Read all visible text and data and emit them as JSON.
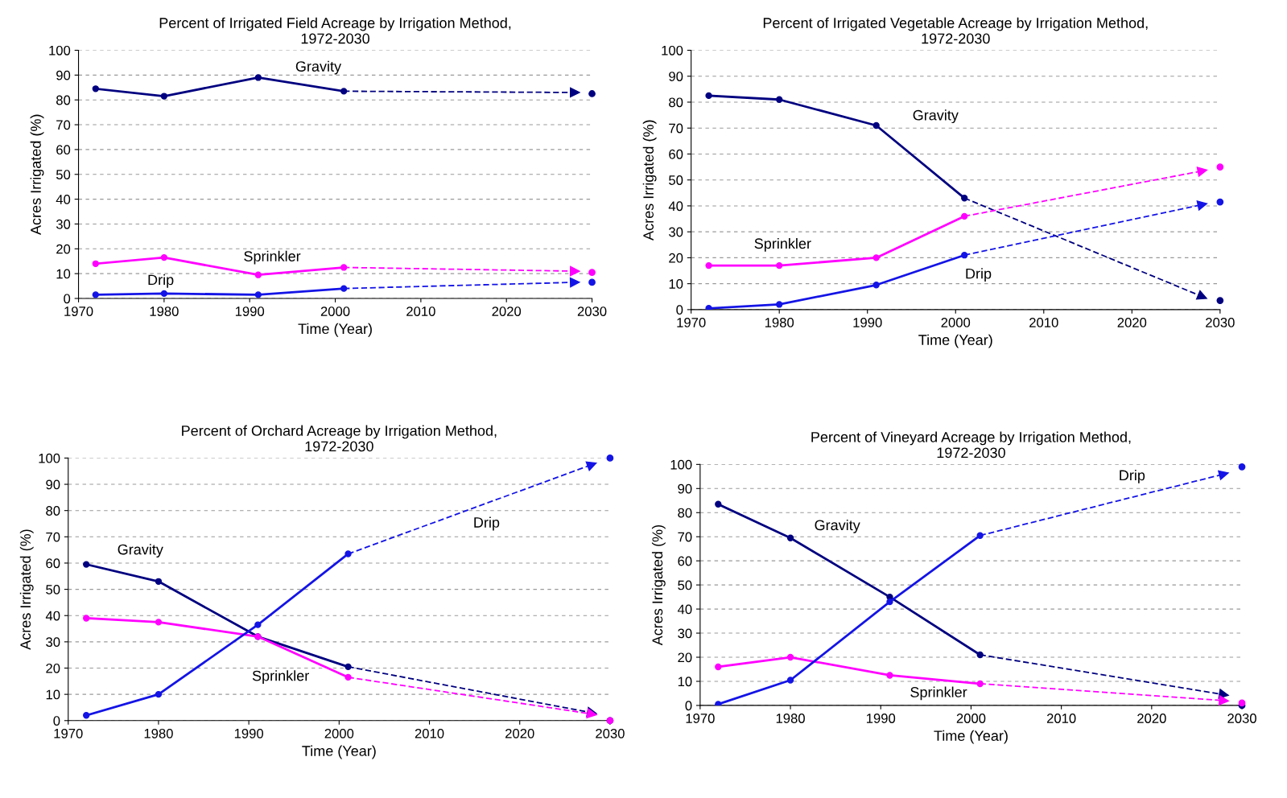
{
  "chart_data": [
    {
      "type": "line",
      "title": "Percent of Irrigated Field Acreage by Irrigation Method,\n1972-2030",
      "xlabel": "Time (Year)",
      "ylabel": "Acres Irrigated (%)",
      "xlim": [
        1970,
        2030
      ],
      "xticks": [
        1970,
        1980,
        1990,
        2000,
        2010,
        2020,
        2030
      ],
      "ylim": [
        0,
        100
      ],
      "yticks": [
        0,
        10,
        20,
        30,
        40,
        50,
        60,
        70,
        80,
        90,
        100
      ],
      "grid": "y",
      "legend": false,
      "series": [
        {
          "name": "Gravity",
          "color": "#000080",
          "x": [
            1972,
            1980,
            1991,
            2001
          ],
          "values": [
            84.5,
            81.5,
            89,
            83.5
          ],
          "marker": "circle",
          "line_style": "solid"
        },
        {
          "color": "#000080",
          "x": [
            2001,
            2028
          ],
          "values": [
            83.5,
            83
          ],
          "marker": "triangle",
          "line_style": "dashed"
        },
        {
          "type": "scatter",
          "color": "#000080",
          "x": [
            2030
          ],
          "values": [
            82.5
          ],
          "marker": "circle"
        },
        {
          "name": "Sprinkler",
          "color": "#ff00ff",
          "x": [
            1972,
            1980,
            1991,
            2001
          ],
          "values": [
            14,
            16.5,
            9.5,
            12.5
          ],
          "marker": "circle",
          "line_style": "solid"
        },
        {
          "color": "#ff00ff",
          "x": [
            2001,
            2028
          ],
          "values": [
            12.5,
            11
          ],
          "marker": "triangle",
          "line_style": "dashed"
        },
        {
          "type": "scatter",
          "color": "#ff00ff",
          "x": [
            2030
          ],
          "values": [
            10.5
          ],
          "marker": "circle"
        },
        {
          "name": "Drip",
          "color": "#1414e6",
          "x": [
            1972,
            1980,
            1991,
            2001
          ],
          "values": [
            1.5,
            2,
            1.5,
            4
          ],
          "marker": "circle",
          "line_style": "solid"
        },
        {
          "color": "#1414e6",
          "x": [
            2001,
            2028
          ],
          "values": [
            4,
            6.5
          ],
          "marker": "triangle",
          "line_style": "dashed"
        },
        {
          "type": "scatter",
          "color": "#1414e6",
          "x": [
            2030
          ],
          "values": [
            6.5
          ],
          "marker": "circle"
        }
      ]
    },
    {
      "type": "line",
      "title": "Percent of Irrigated Vegetable Acreage by Irrigation Method,\n1972-2030",
      "xlabel": "Time (Year)",
      "ylabel": "Acres Irrigated (%)",
      "xlim": [
        1970,
        2030
      ],
      "xticks": [
        1970,
        1980,
        1990,
        2000,
        2010,
        2020,
        2030
      ],
      "ylim": [
        0,
        100
      ],
      "yticks": [
        0,
        10,
        20,
        30,
        40,
        50,
        60,
        70,
        80,
        90,
        100
      ],
      "grid": "y",
      "legend": false,
      "series": [
        {
          "name": "Gravity",
          "color": "#000080",
          "x": [
            1972,
            1980,
            1991,
            2001
          ],
          "values": [
            82.5,
            81,
            71,
            43
          ],
          "marker": "circle",
          "line_style": "solid"
        },
        {
          "color": "#000080",
          "x": [
            2001,
            2028
          ],
          "values": [
            43,
            5
          ],
          "marker": "triangle",
          "line_style": "dashed"
        },
        {
          "type": "scatter",
          "color": "#000080",
          "x": [
            2030
          ],
          "values": [
            3.5
          ],
          "marker": "circle"
        },
        {
          "name": "Sprinkler",
          "color": "#ff00ff",
          "x": [
            1972,
            1980,
            1991,
            2001
          ],
          "values": [
            17,
            17,
            20,
            36
          ],
          "marker": "circle",
          "line_style": "solid"
        },
        {
          "color": "#ff00ff",
          "x": [
            2001,
            2028
          ],
          "values": [
            36,
            53.5
          ],
          "marker": "triangle",
          "line_style": "dashed"
        },
        {
          "type": "scatter",
          "color": "#ff00ff",
          "x": [
            2030
          ],
          "values": [
            55
          ],
          "marker": "circle"
        },
        {
          "name": "Drip",
          "color": "#1414e6",
          "x": [
            1972,
            1980,
            1991,
            2001
          ],
          "values": [
            0.5,
            2,
            9.5,
            21
          ],
          "marker": "circle",
          "line_style": "solid"
        },
        {
          "color": "#1414e6",
          "x": [
            2001,
            2028
          ],
          "values": [
            21,
            40.5
          ],
          "marker": "triangle",
          "line_style": "dashed"
        },
        {
          "type": "scatter",
          "color": "#1414e6",
          "x": [
            2030
          ],
          "values": [
            41.5
          ],
          "marker": "circle"
        }
      ]
    },
    {
      "type": "line",
      "title": "Percent of Orchard Acreage by Irrigation Method,\n1972-2030",
      "xlabel": "Time (Year)",
      "ylabel": "Acres Irrigated (%)",
      "xlim": [
        1970,
        2030
      ],
      "xticks": [
        1970,
        1980,
        1990,
        2000,
        2010,
        2020,
        2030
      ],
      "ylim": [
        0,
        100
      ],
      "yticks": [
        0,
        10,
        20,
        30,
        40,
        50,
        60,
        70,
        80,
        90,
        100
      ],
      "grid": "y",
      "legend": false,
      "series": [
        {
          "name": "Gravity",
          "color": "#000080",
          "x": [
            1972,
            1980,
            1991,
            2001
          ],
          "values": [
            59.5,
            53,
            32,
            20.5
          ],
          "marker": "circle",
          "line_style": "solid"
        },
        {
          "color": "#000080",
          "x": [
            2001,
            2028
          ],
          "values": [
            20.5,
            3
          ],
          "marker": "triangle",
          "line_style": "dashed"
        },
        {
          "type": "scatter",
          "color": "#000080",
          "x": [
            2030
          ],
          "values": [
            0
          ],
          "marker": "circle"
        },
        {
          "name": "Sprinkler",
          "color": "#ff00ff",
          "x": [
            1972,
            1980,
            1991,
            2001
          ],
          "values": [
            39,
            37.5,
            32,
            16.5
          ],
          "marker": "circle",
          "line_style": "solid"
        },
        {
          "color": "#ff00ff",
          "x": [
            2001,
            2028
          ],
          "values": [
            16.5,
            2.5
          ],
          "marker": "triangle",
          "line_style": "dashed"
        },
        {
          "type": "scatter",
          "color": "#ff00ff",
          "x": [
            2030
          ],
          "values": [
            0
          ],
          "marker": "circle"
        },
        {
          "color": "#1414e6",
          "x": [
            1972,
            1980,
            1991,
            2001
          ],
          "values": [
            2,
            10,
            36.5,
            63.5
          ],
          "marker": "circle",
          "line_style": "solid"
        },
        {
          "name": "Drip",
          "color": "#1414e6",
          "x": [
            2001,
            2028
          ],
          "values": [
            63.5,
            97.5
          ],
          "marker": "triangle",
          "line_style": "dashed"
        },
        {
          "type": "scatter",
          "color": "#1414e6",
          "x": [
            2030
          ],
          "values": [
            100
          ],
          "marker": "circle"
        }
      ]
    },
    {
      "type": "line",
      "title": "Percent of Vineyard Acreage by Irrigation Method,\n1972-2030",
      "xlabel": "Time (Year)",
      "ylabel": "Acres Irrigated (%)",
      "xlim": [
        1970,
        2030
      ],
      "xticks": [
        1970,
        1980,
        1990,
        2000,
        2010,
        2020,
        2030
      ],
      "ylim": [
        0,
        100
      ],
      "yticks": [
        0,
        10,
        20,
        30,
        40,
        50,
        60,
        70,
        80,
        90,
        100
      ],
      "grid": "y",
      "legend": false,
      "series": [
        {
          "name": "Gravity",
          "color": "#000080",
          "x": [
            1972,
            1980,
            1991,
            2001
          ],
          "values": [
            83.5,
            69.5,
            45,
            21
          ],
          "marker": "circle",
          "line_style": "solid"
        },
        {
          "color": "#000080",
          "x": [
            2001,
            2028
          ],
          "values": [
            21,
            4.5
          ],
          "marker": "triangle",
          "line_style": "dashed"
        },
        {
          "type": "scatter",
          "color": "#000080",
          "x": [
            2030
          ],
          "values": [
            0
          ],
          "marker": "circle"
        },
        {
          "name": "Sprinkler",
          "color": "#ff00ff",
          "x": [
            1972,
            1980,
            1991,
            2001
          ],
          "values": [
            16,
            20,
            12.5,
            9
          ],
          "marker": "circle",
          "line_style": "solid"
        },
        {
          "color": "#ff00ff",
          "x": [
            2001,
            2028
          ],
          "values": [
            9,
            2
          ],
          "marker": "triangle",
          "line_style": "dashed"
        },
        {
          "type": "scatter",
          "color": "#ff00ff",
          "x": [
            2030
          ],
          "values": [
            1
          ],
          "marker": "circle"
        },
        {
          "color": "#1414e6",
          "x": [
            1972,
            1980,
            1991,
            2001
          ],
          "values": [
            0.5,
            10.5,
            43,
            70.5
          ],
          "marker": "circle",
          "line_style": "solid"
        },
        {
          "name": "Drip",
          "color": "#1414e6",
          "x": [
            2001,
            2028
          ],
          "values": [
            70.5,
            96
          ],
          "marker": "triangle",
          "line_style": "dashed"
        },
        {
          "type": "scatter",
          "color": "#1414e6",
          "x": [
            2030
          ],
          "values": [
            99
          ],
          "marker": "circle"
        }
      ]
    }
  ]
}
